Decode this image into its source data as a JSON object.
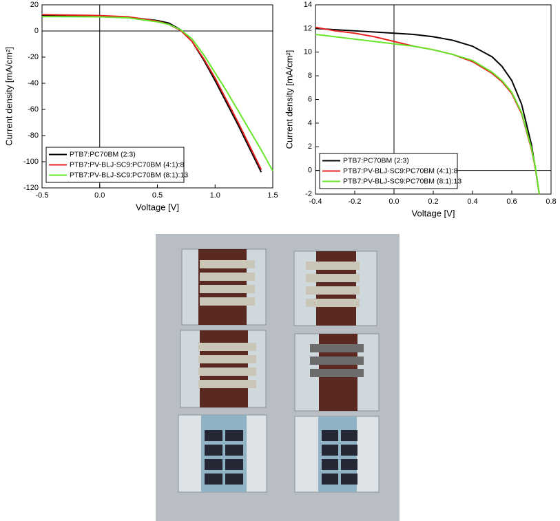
{
  "chart_data": [
    {
      "type": "line",
      "xlabel": "Voltage [V]",
      "ylabel": "Current density [mA/cm²]",
      "xlim": [
        -0.5,
        1.5
      ],
      "ylim": [
        -120,
        20
      ],
      "xticks": [
        -0.5,
        {
          "value": 0,
          "label": "0.0"
        },
        0.5,
        {
          "value": 1,
          "label": "1.0"
        },
        1.5
      ],
      "yticks": [
        -120,
        -100,
        -80,
        -60,
        -40,
        -20,
        0,
        20
      ],
      "grid": false,
      "zero_lines": true,
      "legend": "lower left",
      "x": [
        -0.5,
        -0.25,
        0,
        0.25,
        0.5,
        0.6,
        0.7,
        0.8,
        0.9,
        1.0,
        1.1,
        1.2,
        1.3,
        1.4,
        1.5
      ],
      "series": [
        {
          "name": "PTB7:PC70BM (2:3)",
          "color": "#000000",
          "values": [
            12,
            11.8,
            11.5,
            10.5,
            8,
            6,
            1,
            -8,
            -22,
            -38,
            -55,
            -72,
            -90,
            -108,
            null
          ]
        },
        {
          "name": "PTB7:PV-BLJ-SC9:PC70BM (4:1):8",
          "color": "#e8231f",
          "values": [
            12.5,
            12.2,
            11.8,
            10.8,
            7.5,
            5,
            0.5,
            -8,
            -21,
            -36,
            -53,
            -70,
            -88,
            -106,
            null
          ]
        },
        {
          "name": "PTB7:PV-BLJ-SC9:PC70BM (8:1):13",
          "color": "#66e62a",
          "values": [
            11,
            10.9,
            10.8,
            10,
            7,
            5,
            1,
            -6,
            -18,
            -32,
            -46,
            -61,
            -76,
            -91,
            -107
          ]
        }
      ]
    },
    {
      "type": "line",
      "xlabel": "Voltage [V]",
      "ylabel": "Current density [mA/cm²]",
      "xlim": [
        -0.4,
        0.8
      ],
      "ylim": [
        -2,
        14
      ],
      "xticks": [
        -0.4,
        -0.2,
        {
          "value": 0,
          "label": "0.0"
        },
        0.2,
        0.4,
        0.6,
        0.8
      ],
      "yticks": [
        -2,
        0,
        2,
        4,
        6,
        8,
        10,
        12,
        14
      ],
      "grid": false,
      "zero_lines": true,
      "legend": "lower left",
      "x": [
        -0.4,
        -0.3,
        -0.2,
        -0.1,
        0,
        0.1,
        0.2,
        0.3,
        0.4,
        0.5,
        0.55,
        0.6,
        0.65,
        0.7,
        0.72,
        0.74
      ],
      "series": [
        {
          "name": "PTB7:PC70BM (2:3)",
          "color": "#000000",
          "values": [
            12.0,
            11.9,
            11.8,
            11.7,
            11.6,
            11.5,
            11.3,
            11.0,
            10.5,
            9.6,
            8.8,
            7.6,
            5.6,
            2.2,
            0.2,
            -2
          ]
        },
        {
          "name": "PTB7:PV-BLJ-SC9:PC70BM (4:1):8",
          "color": "#e8231f",
          "values": [
            12.1,
            11.8,
            11.6,
            11.3,
            10.9,
            10.5,
            10.2,
            9.8,
            9.2,
            8.2,
            7.5,
            6.5,
            4.8,
            1.8,
            0.2,
            -2
          ]
        },
        {
          "name": "PTB7:PV-BLJ-SC9:PC70BM (8:1):13",
          "color": "#66e62a",
          "values": [
            11.5,
            11.3,
            11.1,
            10.9,
            10.7,
            10.5,
            10.2,
            9.8,
            9.3,
            8.3,
            7.6,
            6.6,
            4.9,
            1.9,
            0.3,
            -2
          ]
        }
      ]
    }
  ]
}
